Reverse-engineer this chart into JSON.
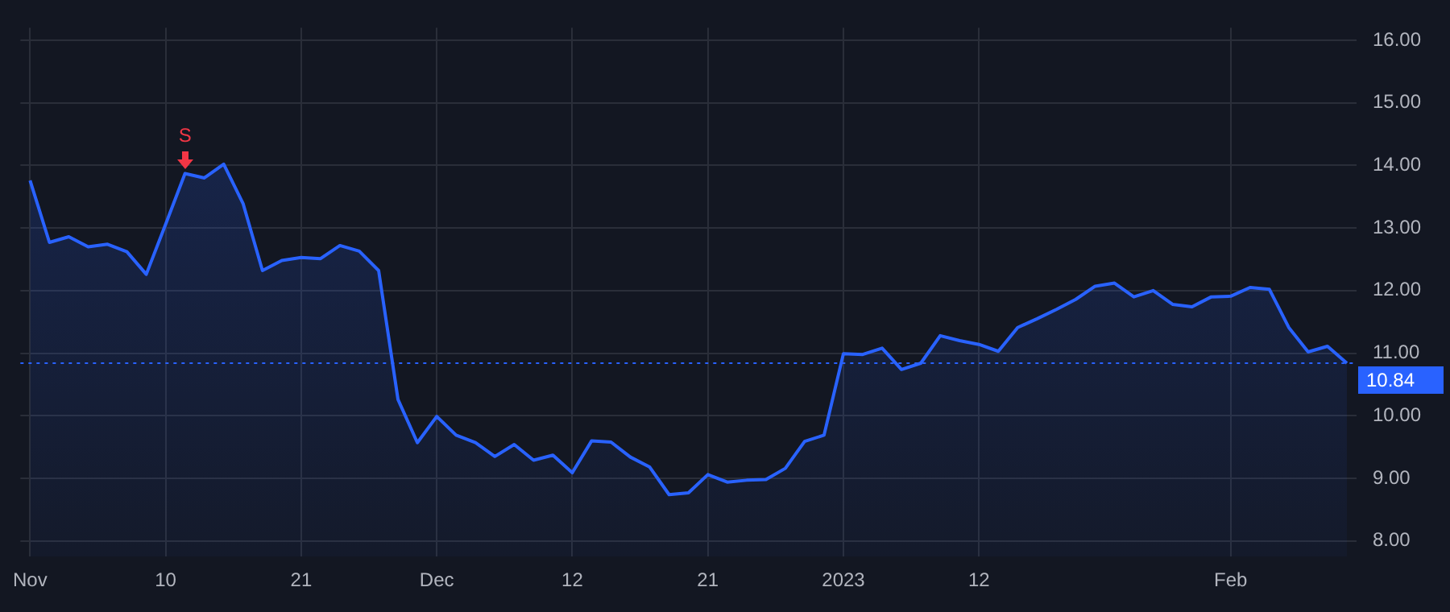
{
  "chart_data": {
    "type": "area",
    "categories": [
      "Nov",
      null,
      null,
      null,
      null,
      null,
      null,
      "10",
      null,
      null,
      null,
      null,
      null,
      null,
      "21",
      null,
      null,
      null,
      null,
      null,
      null,
      "Dec",
      null,
      null,
      null,
      null,
      null,
      null,
      "12",
      null,
      null,
      null,
      null,
      null,
      null,
      "21",
      null,
      null,
      null,
      null,
      null,
      null,
      "2023",
      null,
      null,
      null,
      null,
      null,
      null,
      "12",
      null,
      null,
      null,
      null,
      null,
      null,
      null,
      null,
      null,
      null,
      null,
      null,
      "Feb",
      null,
      null,
      null,
      null,
      null,
      null
    ],
    "series": [
      {
        "color": "#2962ff",
        "values": [
          13.76,
          12.77,
          12.86,
          12.7,
          12.74,
          12.62,
          12.26,
          13.06,
          13.87,
          13.8,
          14.02,
          13.39,
          12.32,
          12.48,
          12.53,
          12.51,
          12.72,
          12.63,
          12.32,
          10.26,
          9.57,
          9.99,
          9.69,
          9.57,
          9.35,
          9.54,
          9.29,
          9.37,
          9.09,
          9.6,
          9.58,
          9.34,
          9.18,
          8.74,
          8.77,
          9.06,
          8.94,
          8.97,
          8.98,
          9.16,
          9.59,
          9.69,
          10.99,
          10.98,
          11.08,
          10.74,
          10.84,
          11.28,
          11.2,
          11.14,
          11.03,
          11.41,
          11.55,
          11.7,
          11.86,
          12.07,
          12.12,
          11.9,
          12.0,
          11.78,
          11.74,
          11.9,
          11.91,
          12.05,
          12.02,
          11.41,
          11.02,
          11.11,
          10.84
        ]
      }
    ],
    "ylim": [
      7.75,
      16.2
    ],
    "yticks": [
      {
        "value": 8,
        "label": "8.00"
      },
      {
        "value": 9,
        "label": "9.00"
      },
      {
        "value": 10,
        "label": "10.00"
      },
      {
        "value": 11,
        "label": "11.00"
      },
      {
        "value": 12,
        "label": "12.00"
      },
      {
        "value": 13,
        "label": "13.00"
      },
      {
        "value": 14,
        "label": "14.00"
      },
      {
        "value": 15,
        "label": "15.00"
      },
      {
        "value": 16,
        "label": "16.00"
      }
    ],
    "grid": true,
    "legend": false,
    "marker": "none",
    "line_style": "solid",
    "ref_lines": [
      {
        "axis": "y",
        "value": 10.84,
        "label": "10.84",
        "color": "#2962ff",
        "line_style": "dotted"
      }
    ],
    "annotations": [
      {
        "text": "S",
        "y": 13.87
      }
    ]
  }
}
